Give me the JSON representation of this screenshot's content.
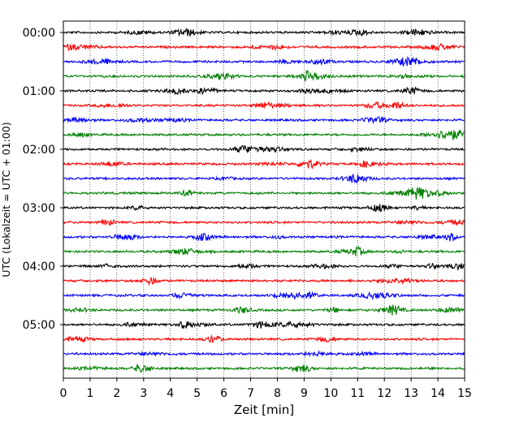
{
  "chart_data": {
    "type": "line",
    "xlabel": "Zeit  [min]",
    "ylabel": "UTC (Lokalzeit = UTC + 01:00)",
    "xlim": [
      0,
      15
    ],
    "x_ticks": [
      "0",
      "1",
      "2",
      "3",
      "4",
      "5",
      "6",
      "7",
      "8",
      "9",
      "10",
      "11",
      "12",
      "13",
      "14",
      "15"
    ],
    "y_ticks": [
      "00:00",
      "01:00",
      "02:00",
      "03:00",
      "04:00",
      "05:00"
    ],
    "trace_interval_min": 15,
    "trace_count": 24,
    "trace_colors": [
      "#000000",
      "#ff0000",
      "#0000ff",
      "#008000"
    ],
    "grid": "vertical dotted at each minute",
    "series": []
  }
}
